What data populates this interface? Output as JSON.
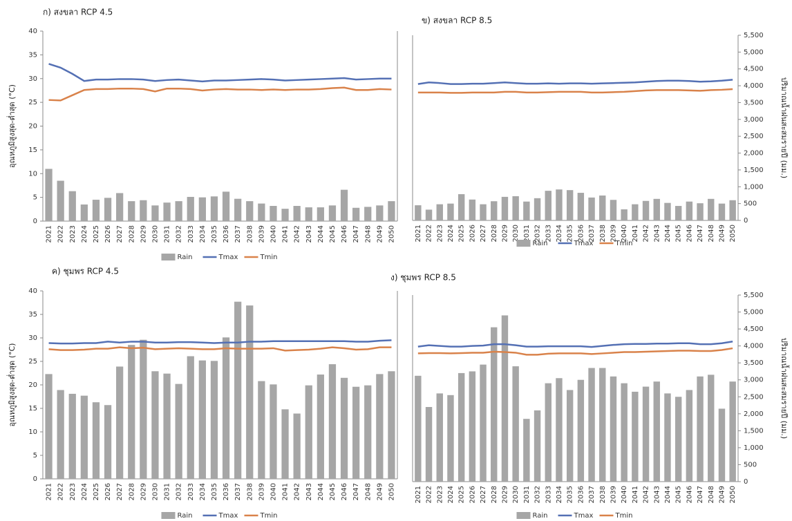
{
  "chart_data": [
    {
      "type": "combo",
      "title": "ก) สงขลา RCP 4.5",
      "y_label": "อุณหภูมิสูงสุด-ต่ำสุด (°C)",
      "axis_side": "left",
      "legend": "bottom",
      "categories": [
        "2021",
        "2022",
        "2023",
        "2024",
        "2025",
        "2026",
        "2027",
        "2028",
        "2029",
        "2030",
        "2031",
        "2032",
        "2033",
        "2034",
        "2035",
        "2036",
        "2037",
        "2038",
        "2039",
        "2040",
        "2041",
        "2042",
        "2043",
        "2044",
        "2045",
        "2046",
        "2047",
        "2048",
        "2049",
        "2050"
      ],
      "ylim": [
        0,
        40
      ],
      "yticks": [
        0,
        5,
        10,
        15,
        20,
        25,
        30,
        35,
        40
      ],
      "series": [
        {
          "name": "Rain",
          "kind": "bar",
          "color": "#a6a6a6",
          "values": [
            11,
            8.5,
            6.3,
            3.5,
            4.5,
            4.9,
            5.9,
            4.2,
            4.4,
            3.3,
            3.9,
            4.2,
            5.1,
            5.0,
            5.2,
            6.2,
            4.7,
            4.2,
            3.7,
            3.2,
            2.6,
            3.2,
            2.9,
            2.9,
            3.3,
            6.6,
            2.8,
            3.0,
            3.3,
            4.2
          ]
        },
        {
          "name": "Tmax",
          "kind": "line",
          "color": "#5470b4",
          "values": [
            33.1,
            32.3,
            31.0,
            29.5,
            29.8,
            29.8,
            29.9,
            29.9,
            29.8,
            29.5,
            29.7,
            29.8,
            29.6,
            29.4,
            29.6,
            29.6,
            29.7,
            29.8,
            29.9,
            29.8,
            29.6,
            29.7,
            29.8,
            29.9,
            30.0,
            30.1,
            29.8,
            29.9,
            30.0,
            30.0
          ]
        },
        {
          "name": "Tmin",
          "kind": "line",
          "color": "#d9824a",
          "values": [
            25.5,
            25.4,
            26.5,
            27.6,
            27.8,
            27.8,
            27.9,
            27.9,
            27.8,
            27.3,
            27.9,
            27.9,
            27.8,
            27.5,
            27.7,
            27.8,
            27.7,
            27.7,
            27.6,
            27.7,
            27.6,
            27.7,
            27.7,
            27.8,
            28.0,
            28.1,
            27.6,
            27.6,
            27.8,
            27.7
          ]
        }
      ]
    },
    {
      "type": "combo",
      "title": "ข) สงขลา RCP 8.5",
      "y_label": "ปริมาณน้ำฝนสะสมรายปี (มม.)",
      "axis_side": "right",
      "legend": "bottom",
      "categories": [
        "2021",
        "2022",
        "2023",
        "2024",
        "2025",
        "2026",
        "2027",
        "2028",
        "2029",
        "2030",
        "2031",
        "2032",
        "2033",
        "2034",
        "2035",
        "2036",
        "2037",
        "2038",
        "2039",
        "2040",
        "2041",
        "2042",
        "2043",
        "2044",
        "2045",
        "2046",
        "2047",
        "2048",
        "2049",
        "2050"
      ],
      "ylim": [
        0,
        5500
      ],
      "yticks": [
        0,
        500,
        {
          "value": 1000,
          "label": "1,000"
        },
        {
          "value": 1500,
          "label": "1,500"
        },
        {
          "value": 2000,
          "label": "2,000"
        },
        {
          "value": 2500,
          "label": "2,500"
        },
        {
          "value": 3000,
          "label": "3,000"
        },
        {
          "value": 3500,
          "label": "3,500"
        },
        {
          "value": 4000,
          "label": "4,000"
        },
        {
          "value": 4500,
          "label": "4,500"
        },
        {
          "value": 5000,
          "label": "5,000"
        },
        {
          "value": 5500,
          "label": "5,500"
        }
      ],
      "series": [
        {
          "name": "Rain",
          "kind": "bar",
          "color": "#a6a6a6",
          "values": [
            450,
            320,
            480,
            500,
            780,
            620,
            480,
            570,
            700,
            720,
            560,
            660,
            880,
            920,
            900,
            820,
            680,
            740,
            610,
            330,
            480,
            580,
            640,
            520,
            430,
            560,
            510,
            640,
            500,
            600
          ]
        },
        {
          "name": "Tmax",
          "kind": "line",
          "color": "#5470b4",
          "values": [
            4050,
            4100,
            4080,
            4050,
            4050,
            4060,
            4060,
            4080,
            4100,
            4080,
            4060,
            4060,
            4070,
            4060,
            4070,
            4070,
            4060,
            4070,
            4080,
            4090,
            4100,
            4120,
            4140,
            4150,
            4150,
            4140,
            4120,
            4130,
            4150,
            4180
          ]
        },
        {
          "name": "Tmin",
          "kind": "line",
          "color": "#d9824a",
          "values": [
            3800,
            3800,
            3800,
            3790,
            3790,
            3800,
            3800,
            3800,
            3820,
            3820,
            3800,
            3800,
            3810,
            3820,
            3820,
            3820,
            3800,
            3800,
            3810,
            3820,
            3840,
            3860,
            3870,
            3870,
            3870,
            3860,
            3850,
            3870,
            3880,
            3900
          ]
        }
      ]
    },
    {
      "type": "combo",
      "title": "ค) ชุมพร RCP 4.5",
      "y_label": "อุณหภูมิสูงสุด-ต่ำสุด (°C)",
      "axis_side": "left",
      "legend": "bottom",
      "categories": [
        "2021",
        "2022",
        "2023",
        "2024",
        "2025",
        "2026",
        "2027",
        "2028",
        "2029",
        "2030",
        "2031",
        "2032",
        "2033",
        "2034",
        "2035",
        "2036",
        "2037",
        "2038",
        "2039",
        "2040",
        "2041",
        "2042",
        "2043",
        "2044",
        "2045",
        "2046",
        "2047",
        "2048",
        "2049",
        "2050"
      ],
      "ylim": [
        0,
        40
      ],
      "yticks": [
        0,
        5,
        10,
        15,
        20,
        25,
        30,
        35,
        40
      ],
      "series": [
        {
          "name": "Rain",
          "kind": "bar",
          "color": "#a6a6a6",
          "values": [
            22.3,
            18.9,
            18.1,
            17.7,
            16.3,
            15.7,
            23.9,
            28.5,
            29.6,
            22.9,
            22.4,
            20.2,
            26.1,
            25.2,
            25.1,
            30.1,
            37.7,
            36.9,
            20.8,
            20.1,
            14.8,
            13.9,
            19.9,
            22.2,
            24.4,
            21.5,
            19.6,
            19.9,
            22.3,
            22.9
          ]
        },
        {
          "name": "Tmax",
          "kind": "line",
          "color": "#5470b4",
          "values": [
            28.9,
            28.8,
            28.8,
            28.9,
            28.9,
            29.2,
            29.0,
            29.2,
            29.2,
            29.0,
            29.0,
            29.1,
            29.1,
            29.0,
            28.9,
            29.0,
            29.0,
            29.2,
            29.2,
            29.3,
            29.3,
            29.3,
            29.3,
            29.3,
            29.3,
            29.3,
            29.2,
            29.2,
            29.4,
            29.5
          ]
        },
        {
          "name": "Tmin",
          "kind": "line",
          "color": "#d9824a",
          "values": [
            27.6,
            27.4,
            27.4,
            27.5,
            27.7,
            27.7,
            28.0,
            27.8,
            27.9,
            27.6,
            27.7,
            27.8,
            27.7,
            27.6,
            27.6,
            27.8,
            27.7,
            27.7,
            27.7,
            27.8,
            27.3,
            27.4,
            27.5,
            27.7,
            28.0,
            27.8,
            27.5,
            27.6,
            28.0,
            28.0
          ]
        }
      ]
    },
    {
      "type": "combo",
      "title": "ง) ชุมพร RCP 8.5",
      "y_label": "ปริมาณน้ำฝนสะสมรายปี (มม.)",
      "axis_side": "right",
      "legend": "bottom",
      "categories": [
        "2021",
        "2022",
        "2023",
        "2024",
        "2025",
        "2026",
        "2027",
        "2028",
        "2029",
        "2030",
        "2031",
        "2032",
        "2033",
        "2034",
        "2035",
        "2036",
        "2037",
        "2038",
        "2039",
        "2040",
        "2041",
        "2042",
        "2043",
        "2044",
        "2045",
        "2046",
        "2047",
        "2048",
        "2049",
        "2050"
      ],
      "ylim": [
        0,
        5500
      ],
      "yticks": [
        0,
        500,
        {
          "value": 1000,
          "label": "1,000"
        },
        {
          "value": 1500,
          "label": "1,500"
        },
        {
          "value": 2000,
          "label": "2,000"
        },
        {
          "value": 2500,
          "label": "2,500"
        },
        {
          "value": 3000,
          "label": "3,000"
        },
        {
          "value": 3500,
          "label": "3,500"
        },
        {
          "value": 4000,
          "label": "4,000"
        },
        {
          "value": 4500,
          "label": "4,500"
        },
        {
          "value": 5000,
          "label": "5,000"
        },
        {
          "value": 5500,
          "label": "5,500"
        }
      ],
      "series": [
        {
          "name": "Rain",
          "kind": "bar",
          "color": "#a6a6a6",
          "values": [
            3120,
            2200,
            2600,
            2550,
            3200,
            3250,
            3450,
            4550,
            4900,
            3400,
            1850,
            2100,
            2900,
            3050,
            2700,
            3000,
            3350,
            3350,
            3100,
            2900,
            2650,
            2800,
            2950,
            2600,
            2500,
            2700,
            3100,
            3150,
            2150,
            2950
          ]
        },
        {
          "name": "Tmax",
          "kind": "line",
          "color": "#5470b4",
          "values": [
            3980,
            4020,
            4000,
            3980,
            3980,
            4000,
            4010,
            4050,
            4050,
            4020,
            3980,
            3980,
            3990,
            3990,
            3990,
            3990,
            3970,
            4000,
            4030,
            4050,
            4060,
            4060,
            4070,
            4070,
            4080,
            4080,
            4050,
            4050,
            4080,
            4130
          ]
        },
        {
          "name": "Tmin",
          "kind": "line",
          "color": "#d9824a",
          "values": [
            3780,
            3790,
            3790,
            3780,
            3790,
            3800,
            3800,
            3830,
            3820,
            3800,
            3740,
            3740,
            3770,
            3780,
            3780,
            3780,
            3760,
            3780,
            3800,
            3820,
            3820,
            3830,
            3840,
            3850,
            3860,
            3860,
            3850,
            3850,
            3880,
            3930
          ]
        }
      ]
    }
  ]
}
